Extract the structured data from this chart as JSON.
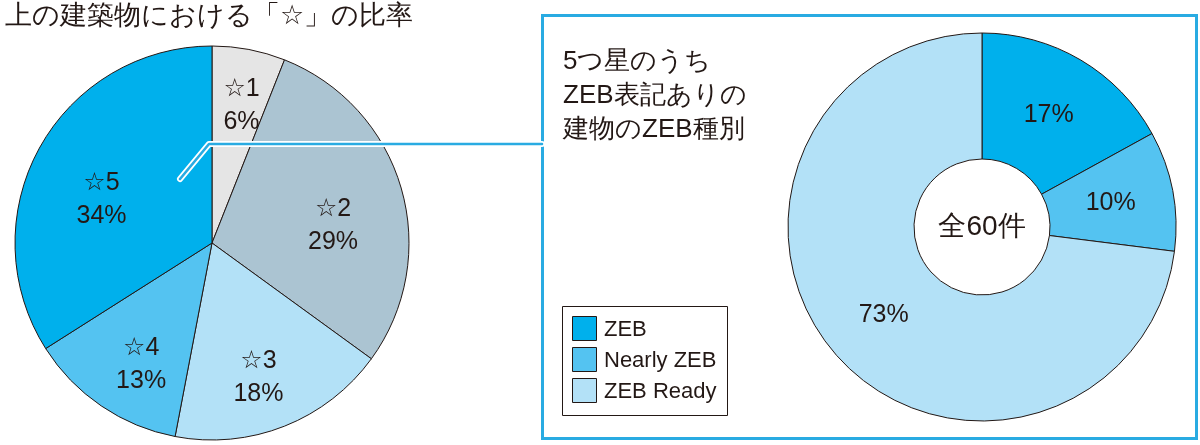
{
  "chart_data": [
    {
      "type": "pie",
      "title": "上の建築物における「☆」の比率",
      "categories": [
        "☆1",
        "☆2",
        "☆3",
        "☆4",
        "☆5"
      ],
      "values": [
        6,
        29,
        18,
        13,
        34
      ],
      "colors": [
        "#e5e5e5",
        "#abc4d2",
        "#b3e1f7",
        "#54c3f1",
        "#00b0ec"
      ],
      "value_labels": [
        "6%",
        "29%",
        "18%",
        "13%",
        "34%"
      ],
      "legend": false
    },
    {
      "type": "donut",
      "title": "5つ星のうちZEB表記ありの建物のZEB種別",
      "categories": [
        "ZEB",
        "Nearly ZEB",
        "ZEB Ready"
      ],
      "values": [
        17,
        10,
        73
      ],
      "colors": [
        "#00b0ec",
        "#54c3f1",
        "#b3e1f7"
      ],
      "value_labels": [
        "17%",
        "10%",
        "73%"
      ],
      "legend": "bottom left",
      "annotations": [
        "全60件"
      ]
    }
  ]
}
